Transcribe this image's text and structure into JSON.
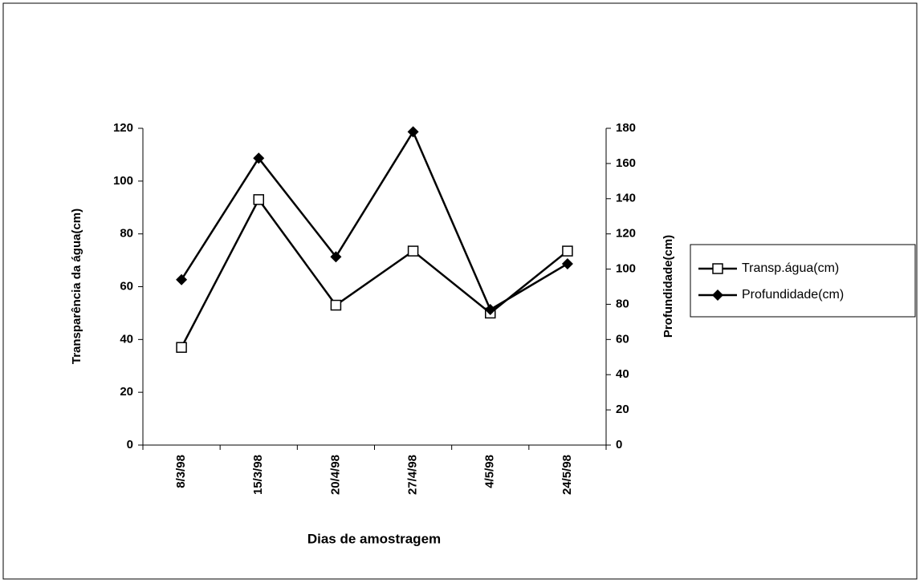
{
  "chart_data": {
    "type": "line",
    "x_label": "Dias de amostragem",
    "y_label": "Transparência da água(cm)",
    "y2_label": "Profundidade(cm)",
    "categories": [
      "8/3/98",
      "15/3/98",
      "20/4/98",
      "27/4/98",
      "4/5/98",
      "24/5/98"
    ],
    "series": [
      {
        "name": "Transp.água(cm)",
        "color": "#000000",
        "marker": "square",
        "values": [
          37,
          93,
          53,
          73.5,
          50,
          73.5
        ]
      },
      {
        "name": "Profundidade(cm)",
        "color": "#000000",
        "marker": "diamond",
        "axis": "y2",
        "values": [
          94,
          163,
          107,
          178,
          77,
          103
        ]
      }
    ],
    "ylim": [
      0,
      120
    ],
    "yticks": [
      0,
      20,
      40,
      60,
      80,
      100,
      120
    ],
    "y2lim": [
      0,
      180
    ],
    "y2ticks": [
      0,
      20,
      40,
      60,
      80,
      100,
      120,
      140,
      160,
      180
    ],
    "legend": "right"
  }
}
